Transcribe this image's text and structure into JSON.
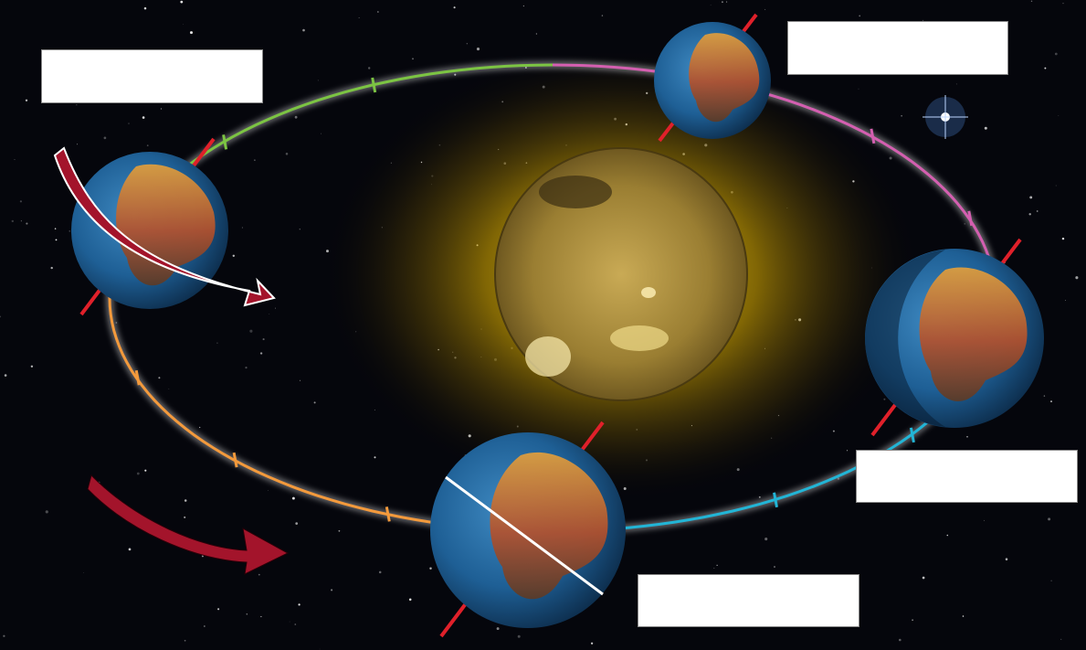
{
  "diagram": {
    "title": "",
    "labels": [
      {
        "id": "upper-left",
        "text": ""
      },
      {
        "id": "upper-right",
        "text": ""
      },
      {
        "id": "lower-right",
        "text": ""
      },
      {
        "id": "bottom-center",
        "text": ""
      }
    ],
    "colors": {
      "orbit_summer_quarter": "#7cc443",
      "orbit_autumn_quarter": "#d45fb0",
      "orbit_winter_quarter": "#22b5d6",
      "orbit_spring_quarter": "#f39a3c",
      "axis_tilt": "#e0202a",
      "arrows": "#a3142b",
      "sun_glow": "#c9a000"
    },
    "elements": {
      "sun": "sun-image",
      "earths": [
        "earth-left",
        "earth-top",
        "earth-right",
        "earth-bottom"
      ],
      "arrows": [
        "rotation-arrow",
        "orbit-direction-arrow"
      ]
    }
  }
}
